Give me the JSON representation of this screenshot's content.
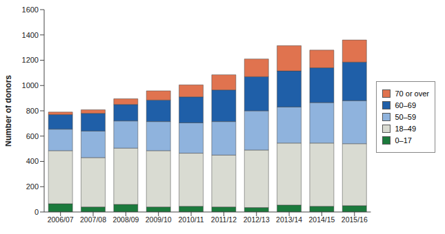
{
  "chart_data": {
    "type": "bar",
    "stacked": true,
    "y_label": "Number of donors",
    "categories": [
      "2006/07",
      "2007/08",
      "2008/09",
      "2009/10",
      "2010/11",
      "2011/12",
      "2012/13",
      "2013/14",
      "2014/15",
      "2015/16"
    ],
    "series": [
      {
        "name": "0–17",
        "color": "#1b7a3c",
        "values": [
          65,
          40,
          60,
          40,
          45,
          40,
          35,
          55,
          45,
          50
        ]
      },
      {
        "name": "18–49",
        "color": "#d9dbd2",
        "values": [
          420,
          390,
          445,
          445,
          420,
          410,
          455,
          490,
          500,
          490
        ]
      },
      {
        "name": "50–59",
        "color": "#8fb3dd",
        "values": [
          170,
          210,
          215,
          230,
          240,
          265,
          310,
          285,
          320,
          340
        ]
      },
      {
        "name": "60–69",
        "color": "#1f5fa8",
        "values": [
          115,
          140,
          130,
          170,
          205,
          250,
          270,
          285,
          275,
          305
        ]
      },
      {
        "name": "70 or over",
        "color": "#e0734f",
        "values": [
          20,
          28,
          45,
          73,
          95,
          120,
          140,
          200,
          140,
          175
        ]
      }
    ],
    "ylim": [
      0,
      1600
    ],
    "yticks": [
      0,
      200,
      400,
      600,
      800,
      1000,
      1200,
      1400,
      1600
    ],
    "grid": false,
    "legend": "right"
  }
}
